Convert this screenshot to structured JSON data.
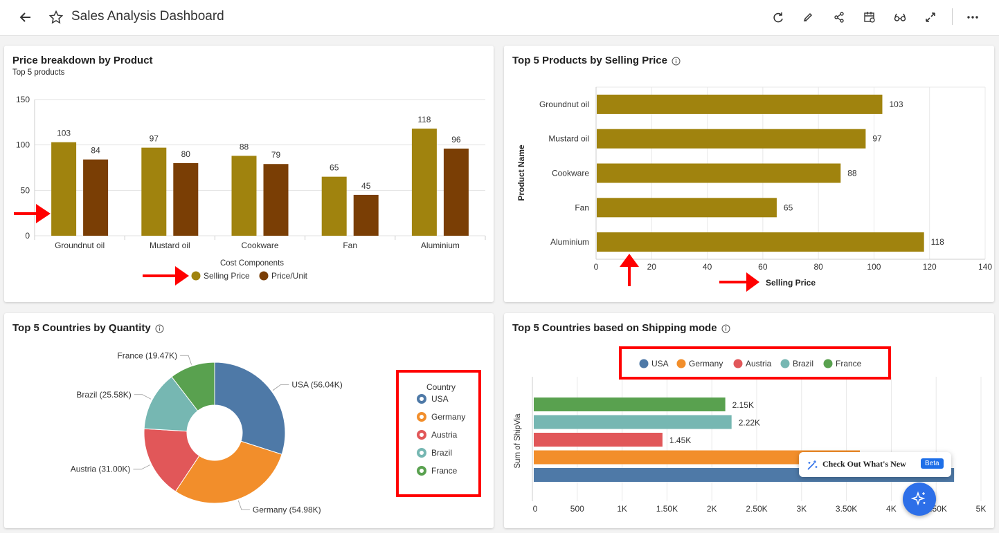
{
  "header": {
    "title": "Sales Analysis Dashboard",
    "icons": [
      "back-arrow-icon",
      "star-icon",
      "refresh-icon",
      "edit-icon",
      "share-icon",
      "schedule-icon",
      "view-icon",
      "fullscreen-icon",
      "more-icon"
    ]
  },
  "colors": {
    "selling": "#a0830e",
    "price_unit": "#7a3e05",
    "usa": "#4e79a7",
    "germany": "#f28e2b",
    "austria": "#e15759",
    "brazil": "#76b7b2",
    "france": "#59a14f",
    "highlight": "#ff0000"
  },
  "card1": {
    "title": "Price breakdown by Product",
    "subtitle": "Top 5 products",
    "legend_title": "Cost Components",
    "chart_data": {
      "type": "bar",
      "categories": [
        "Groundnut oil",
        "Mustard oil",
        "Cookware",
        "Fan",
        "Aluminium"
      ],
      "series": [
        {
          "name": "Selling Price",
          "values": [
            103,
            97,
            88,
            65,
            118
          ]
        },
        {
          "name": "Price/Unit",
          "values": [
            84,
            80,
            79,
            45,
            96
          ]
        }
      ],
      "ylim": [
        0,
        150
      ],
      "yticks": [
        "0",
        "50",
        "100",
        "150"
      ],
      "xlabel": "",
      "ylabel": "",
      "grid": true,
      "legend": "bottom"
    }
  },
  "card2": {
    "title": "Top 5 Products by Selling Price",
    "chart_data": {
      "type": "bar",
      "orientation": "horizontal",
      "categories": [
        "Groundnut oil",
        "Mustard oil",
        "Cookware",
        "Fan",
        "Aluminium"
      ],
      "values": [
        103,
        97,
        88,
        65,
        118
      ],
      "xlim": [
        0,
        140
      ],
      "xticks": [
        "0",
        "20",
        "40",
        "60",
        "80",
        "100",
        "120",
        "140"
      ],
      "xlabel": "Selling Price",
      "ylabel": "Product Name",
      "grid": true
    }
  },
  "card3": {
    "title": "Top 5 Countries by Quantity",
    "legend_title": "Country",
    "chart_data": {
      "type": "pie",
      "style": "donut",
      "slices": [
        {
          "name": "USA",
          "value": 56.04,
          "label": "USA (56.04K)"
        },
        {
          "name": "Germany",
          "value": 54.98,
          "label": "Germany (54.98K)"
        },
        {
          "name": "Austria",
          "value": 31.0,
          "label": "Austria (31.00K)"
        },
        {
          "name": "Brazil",
          "value": 25.58,
          "label": "Brazil (25.58K)"
        },
        {
          "name": "France",
          "value": 19.47,
          "label": "France (19.47K)"
        }
      ],
      "legend": "right"
    }
  },
  "card4": {
    "title": "Top 5 Countries based on Shipping mode",
    "chart_data": {
      "type": "bar",
      "orientation": "horizontal",
      "series": [
        {
          "name": "France",
          "value": 2150,
          "label": "2.15K"
        },
        {
          "name": "Brazil",
          "value": 2220,
          "label": "2.22K"
        },
        {
          "name": "Austria",
          "value": 1450,
          "label": "1.45K"
        },
        {
          "name": "Germany",
          "value": 3650,
          "label": ""
        },
        {
          "name": "USA",
          "value": 4700,
          "label": ""
        }
      ],
      "legend_order": [
        "USA",
        "Germany",
        "Austria",
        "Brazil",
        "France"
      ],
      "xlim": [
        0,
        5000
      ],
      "xticks": [
        "0",
        "500",
        "1K",
        "1.50K",
        "2K",
        "2.50K",
        "3K",
        "3.50K",
        "4K",
        "4.50K",
        "5K"
      ],
      "ylabel": "Sum of ShipVia",
      "legend": "top"
    }
  },
  "popup": {
    "text": "Check Out What's New",
    "badge": "Beta"
  }
}
